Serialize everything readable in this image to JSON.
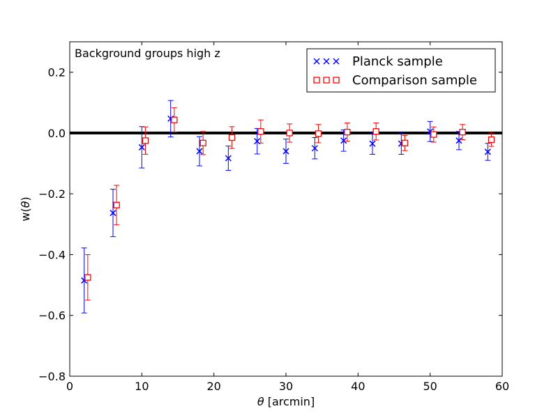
{
  "chart_data": {
    "type": "scatter",
    "title": "",
    "annotation": "Background groups high z",
    "xlabel_symbol": "θ",
    "xlabel_unit": " [arcmin]",
    "ylabel_main": "w(",
    "ylabel_symbol": "θ",
    "ylabel_end": ")",
    "xlim": [
      0,
      60
    ],
    "ylim": [
      -0.8,
      0.3
    ],
    "xticks": [
      0,
      10,
      20,
      30,
      40,
      50,
      60
    ],
    "xtick_labels": [
      "0",
      "10",
      "20",
      "30",
      "40",
      "50",
      "60"
    ],
    "yticks": [
      -0.8,
      -0.6,
      -0.4,
      -0.2,
      0.0,
      0.2
    ],
    "ytick_labels": [
      "−0.8",
      "−0.6",
      "−0.4",
      "−0.2",
      "0.0",
      "0.2"
    ],
    "reference_line": 0.0,
    "grid": false,
    "legend_position": "top-right",
    "series": [
      {
        "name": "Planck sample",
        "marker": "x",
        "color": "#0000ff",
        "x": [
          2,
          6,
          10,
          14,
          18,
          22,
          26,
          30,
          34,
          38,
          42,
          46,
          50,
          54,
          58
        ],
        "y": [
          -0.485,
          -0.263,
          -0.047,
          0.047,
          -0.06,
          -0.083,
          -0.027,
          -0.06,
          -0.05,
          -0.025,
          -0.035,
          -0.035,
          0.005,
          -0.025,
          -0.062
        ],
        "err": [
          0.107,
          0.078,
          0.068,
          0.06,
          0.048,
          0.04,
          0.042,
          0.04,
          0.035,
          0.035,
          0.035,
          0.035,
          0.033,
          0.03,
          0.028
        ]
      },
      {
        "name": "Comparison sample",
        "marker": "square",
        "color": "#ff0000",
        "x": [
          2.5,
          6.5,
          10.5,
          14.5,
          18.5,
          22.5,
          26.5,
          30.5,
          34.5,
          38.5,
          42.5,
          46.5,
          50.5,
          54.5,
          58.5
        ],
        "y": [
          -0.475,
          -0.237,
          -0.025,
          0.043,
          -0.033,
          -0.015,
          0.005,
          0.0,
          -0.002,
          0.003,
          0.005,
          -0.033,
          -0.005,
          0.003,
          -0.022
        ],
        "err": [
          0.075,
          0.065,
          0.045,
          0.04,
          0.038,
          0.036,
          0.038,
          0.03,
          0.03,
          0.03,
          0.028,
          0.025,
          0.025,
          0.025,
          0.022
        ]
      }
    ]
  }
}
